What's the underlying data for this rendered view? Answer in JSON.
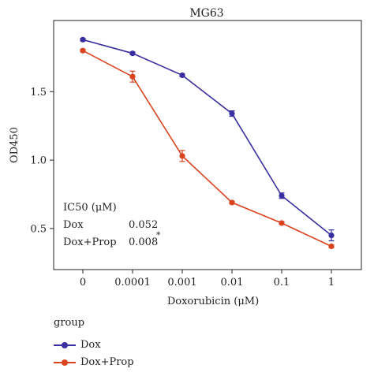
{
  "chart_data": {
    "type": "line",
    "title": "MG63",
    "xlabel": "Doxorubicin (μM)",
    "ylabel": "OD450",
    "categories": [
      "0",
      "0.0001",
      "0.001",
      "0.01",
      "0.1",
      "1"
    ],
    "yticks": [
      "0.5",
      "1.0",
      "1.5"
    ],
    "ylim": [
      0.2,
      2.02
    ],
    "grid": false,
    "series": [
      {
        "name": "Dox",
        "color": "#3a2fa0",
        "values": [
          1.88,
          1.78,
          1.62,
          1.34,
          0.74,
          0.45
        ],
        "errors": [
          0.01,
          0.01,
          0.01,
          0.02,
          0.02,
          0.04
        ]
      },
      {
        "name": "Dox+Prop",
        "color": "#d9431e",
        "values": [
          1.8,
          1.61,
          1.03,
          0.69,
          0.54,
          0.37
        ],
        "errors": [
          0.01,
          0.04,
          0.04,
          0.01,
          0.01,
          0.01
        ]
      }
    ],
    "annotation": {
      "header": "IC50 (μM)",
      "rows": [
        {
          "label": "Dox",
          "value": "0.052",
          "mark": ""
        },
        {
          "label": "Dox+Prop",
          "value": "0.008",
          "mark": "*"
        }
      ]
    },
    "legend": {
      "title": "group",
      "position": "bottom-left"
    }
  }
}
